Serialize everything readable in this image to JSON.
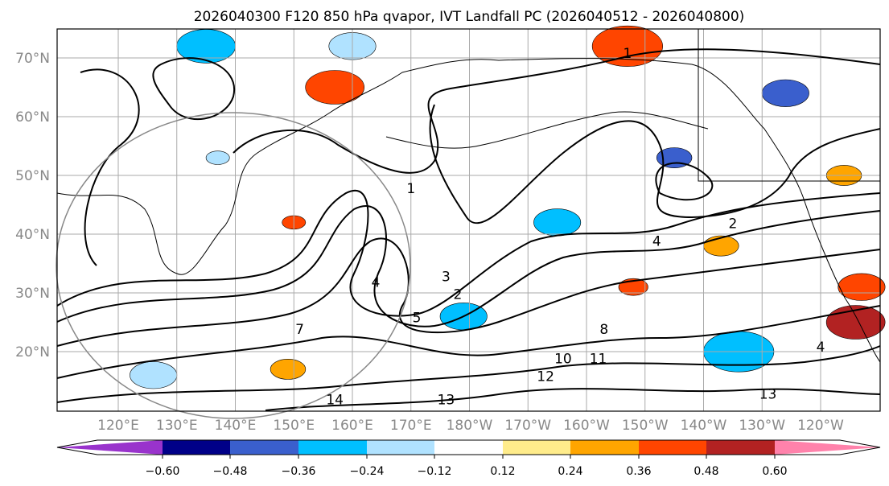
{
  "title": "2026040300 F120 850 hPa qvapor, IVT Landfall PC (2026040512 - 2026040800)",
  "map": {
    "lon_range": [
      109.6,
      250.2
    ],
    "lat_range": [
      10,
      74.9
    ],
    "lon_ticks": [
      {
        "value": 120,
        "label": "120°E"
      },
      {
        "value": 130,
        "label": "130°E"
      },
      {
        "value": 140,
        "label": "140°E"
      },
      {
        "value": 150,
        "label": "150°E"
      },
      {
        "value": 160,
        "label": "160°E"
      },
      {
        "value": 170,
        "label": "170°E"
      },
      {
        "value": 180,
        "label": "180°W"
      },
      {
        "value": 190,
        "label": "170°W"
      },
      {
        "value": 200,
        "label": "160°W"
      },
      {
        "value": 210,
        "label": "150°W"
      },
      {
        "value": 220,
        "label": "140°W"
      },
      {
        "value": 230,
        "label": "130°W"
      },
      {
        "value": 240,
        "label": "120°W"
      }
    ],
    "lat_ticks": [
      {
        "value": 70,
        "label": "70°N"
      },
      {
        "value": 60,
        "label": "60°N"
      },
      {
        "value": 50,
        "label": "50°N"
      },
      {
        "value": 40,
        "label": "40°N"
      },
      {
        "value": 30,
        "label": "30°N"
      },
      {
        "value": 20,
        "label": "20°N"
      }
    ],
    "contour_labels": [
      {
        "text": "1",
        "lon": 170,
        "lat": 47
      },
      {
        "text": "1",
        "lon": 207,
        "lat": 70
      },
      {
        "text": "2",
        "lon": 225,
        "lat": 41
      },
      {
        "text": "4",
        "lon": 212,
        "lat": 38
      },
      {
        "text": "3",
        "lon": 176,
        "lat": 32
      },
      {
        "text": "2",
        "lon": 178,
        "lat": 29
      },
      {
        "text": "5",
        "lon": 171,
        "lat": 25
      },
      {
        "text": "4",
        "lon": 164,
        "lat": 31
      },
      {
        "text": "11",
        "lon": 202,
        "lat": 18
      },
      {
        "text": "10",
        "lon": 196,
        "lat": 18
      },
      {
        "text": "12",
        "lon": 193,
        "lat": 15
      },
      {
        "text": "13",
        "lon": 176,
        "lat": 11
      },
      {
        "text": "13",
        "lon": 231,
        "lat": 12
      },
      {
        "text": "14",
        "lon": 157,
        "lat": 11
      },
      {
        "text": "4",
        "lon": 240,
        "lat": 20
      },
      {
        "text": "8",
        "lon": 203,
        "lat": 23
      },
      {
        "text": "7",
        "lon": 151,
        "lat": 23
      }
    ],
    "shading_blobs": [
      {
        "lon": 157,
        "lat": 65,
        "r": 5,
        "value": 0.36
      },
      {
        "lon": 207,
        "lat": 72,
        "r": 6,
        "value": 0.36
      },
      {
        "lon": 135,
        "lat": 72,
        "r": 5,
        "value": -0.36
      },
      {
        "lon": 160,
        "lat": 72,
        "r": 4,
        "value": -0.24
      },
      {
        "lon": 215,
        "lat": 53,
        "r": 3,
        "value": -0.48
      },
      {
        "lon": 195,
        "lat": 42,
        "r": 4,
        "value": -0.36
      },
      {
        "lon": 179,
        "lat": 26,
        "r": 4,
        "value": -0.36
      },
      {
        "lon": 150,
        "lat": 42,
        "r": 2,
        "value": 0.36
      },
      {
        "lon": 208,
        "lat": 31,
        "r": 2.5,
        "value": 0.36
      },
      {
        "lon": 226,
        "lat": 20,
        "r": 6,
        "value": -0.36
      },
      {
        "lon": 246,
        "lat": 25,
        "r": 5,
        "value": 0.48
      },
      {
        "lon": 247,
        "lat": 31,
        "r": 4,
        "value": 0.36
      },
      {
        "lon": 234,
        "lat": 64,
        "r": 4,
        "value": -0.48
      },
      {
        "lon": 137,
        "lat": 53,
        "r": 2,
        "value": -0.24
      },
      {
        "lon": 149,
        "lat": 17,
        "r": 3,
        "value": 0.24
      },
      {
        "lon": 126,
        "lat": 16,
        "r": 4,
        "value": -0.24
      },
      {
        "lon": 223,
        "lat": 38,
        "r": 3,
        "value": 0.24
      },
      {
        "lon": 244,
        "lat": 50,
        "r": 3,
        "value": 0.24
      }
    ]
  },
  "colorbar": {
    "colors": [
      "#9933cc",
      "#000088",
      "#3a5fcd",
      "#00bfff",
      "#b0e2ff",
      "#ffffff",
      "#ffec8b",
      "#ffa500",
      "#ff4500",
      "#b22222",
      "#ff82ab"
    ],
    "bounds": [
      -0.6,
      -0.48,
      -0.36,
      -0.24,
      -0.12,
      0.12,
      0.24,
      0.36,
      0.48,
      0.6
    ],
    "tick_labels": [
      "−0.60",
      "−0.48",
      "−0.36",
      "−0.24",
      "−0.12",
      "0.12",
      "0.24",
      "0.36",
      "0.48",
      "0.60"
    ]
  }
}
